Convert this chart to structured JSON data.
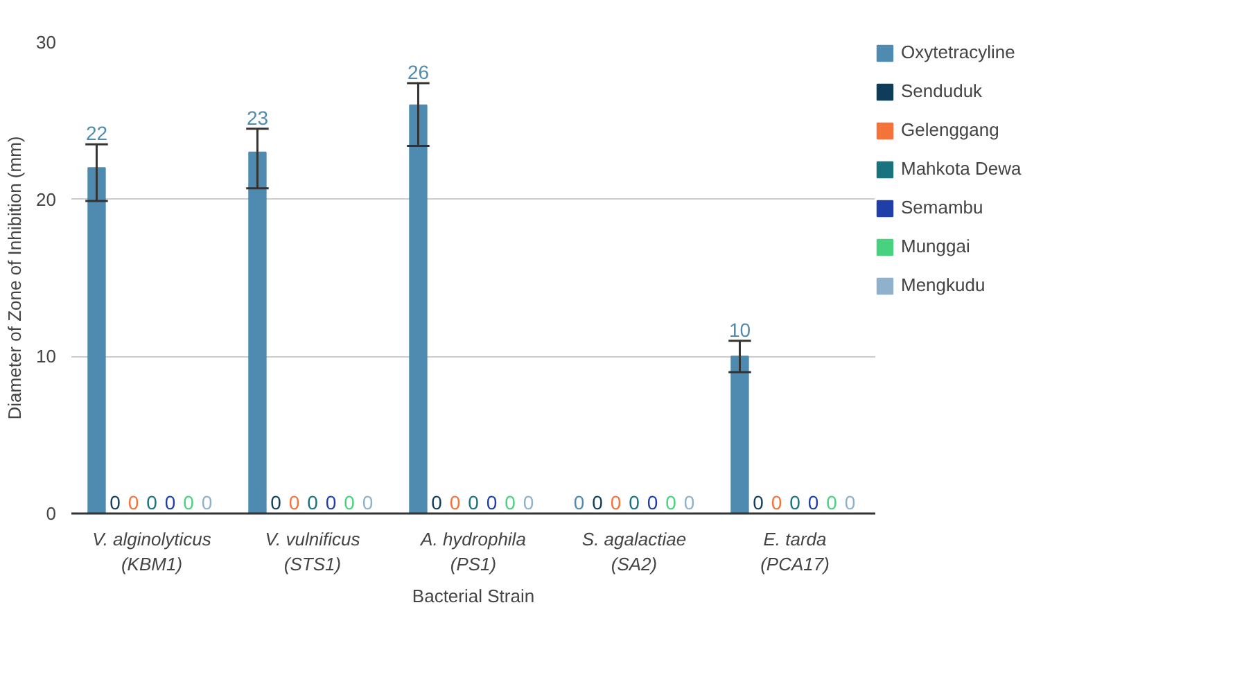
{
  "chart_data": {
    "type": "bar",
    "xlabel": "Bacterial Strain",
    "ylabel": "Diameter of Zone of Inhibition (mm)",
    "categories": [
      "V. alginolyticus\n(KBM1)",
      "V. vulnificus\n(STS1)",
      "A. hydrophila\n(PS1)",
      "S. agalactiae\n(SA2)",
      "E. tarda\n(PCA17)"
    ],
    "series": [
      {
        "name": "Oxytetracyline",
        "color": "#4f8bb0",
        "values": [
          22,
          23,
          26,
          0,
          10
        ],
        "errors": [
          [
            19.9,
            23.5
          ],
          [
            20.7,
            24.5
          ],
          [
            23.4,
            27.4
          ],
          null,
          [
            9.0,
            11.0
          ]
        ]
      },
      {
        "name": "Senduduk",
        "color": "#0e3d5a",
        "values": [
          0,
          0,
          0,
          0,
          0
        ]
      },
      {
        "name": "Gelenggang",
        "color": "#f4733a",
        "values": [
          0,
          0,
          0,
          0,
          0
        ]
      },
      {
        "name": "Mahkota Dewa",
        "color": "#19737e",
        "values": [
          0,
          0,
          0,
          0,
          0
        ]
      },
      {
        "name": "Semambu",
        "color": "#1f3fa8",
        "values": [
          0,
          0,
          0,
          0,
          0
        ]
      },
      {
        "name": "Munggai",
        "color": "#48d17f",
        "values": [
          0,
          0,
          0,
          0,
          0
        ]
      },
      {
        "name": "Mengkudu",
        "color": "#8fb1cb",
        "values": [
          0,
          0,
          0,
          0,
          0
        ]
      }
    ],
    "ylim": [
      0,
      30
    ],
    "yticks": [
      0,
      10,
      20,
      30
    ],
    "grid": "y",
    "legend": "right",
    "data_labels": true
  }
}
